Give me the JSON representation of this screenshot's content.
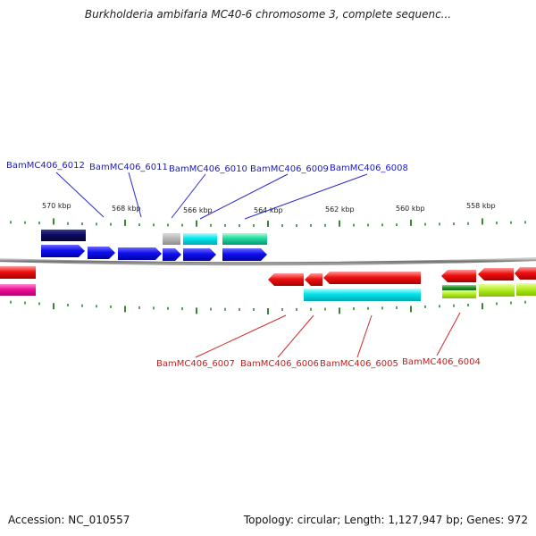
{
  "title": "Burkholderia ambifaria MC40-6 chromosome 3, complete sequenc...",
  "footer": {
    "accession": "Accession: NC_010557",
    "topology": "Topology: circular; Length: 1,127,947 bp; Genes: 972"
  },
  "colors": {
    "backbone": "#8a8a8a",
    "tick": "#2e8b2e",
    "label_forward": "#1a1acc",
    "label_reverse": "#cc1a1a"
  },
  "ticks": [
    "570 kbp",
    "568 kbp",
    "566 kbp",
    "564 kbp",
    "562 kbp",
    "560 kbp",
    "558 kbp"
  ],
  "labels_forward": [
    "BamMC406_6012",
    "BamMC406_6011",
    "BamMC406_6010",
    "BamMC406_6009",
    "BamMC406_6008"
  ],
  "labels_reverse": [
    "BamMC406_6007",
    "BamMC406_6006",
    "BamMC406_6005",
    "BamMC406_6004"
  ]
}
